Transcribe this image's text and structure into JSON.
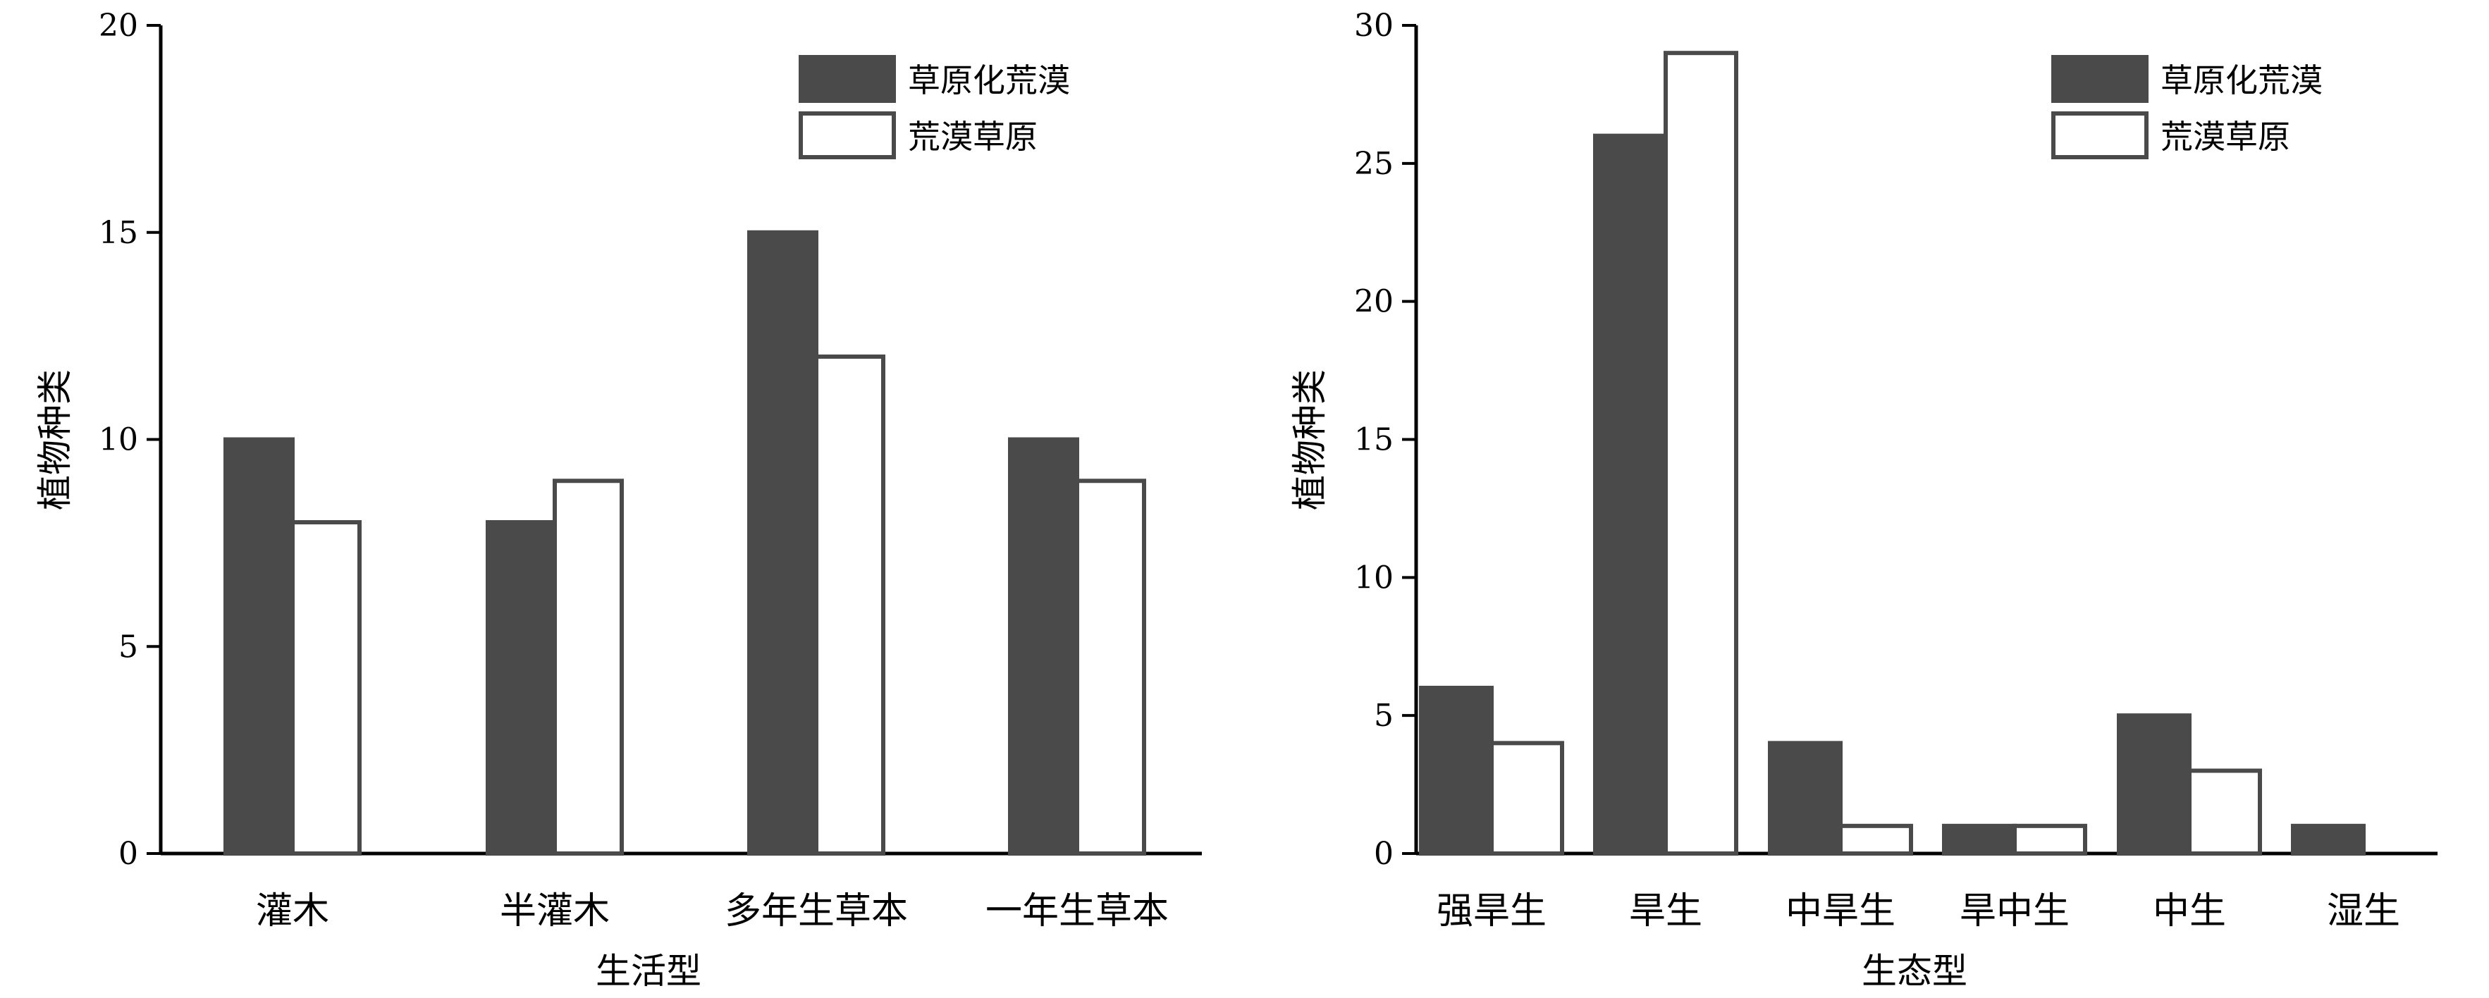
{
  "colors": {
    "series_filled": "#4a4a4a",
    "series_open": "#ffffff",
    "stroke": "#4a4a4a",
    "axis": "#000000"
  },
  "chart_data": [
    {
      "type": "bar",
      "title": "",
      "xlabel": "生活型",
      "ylabel": "植物种类",
      "ylim": [
        0,
        20
      ],
      "yticks": [
        0,
        5,
        10,
        15,
        20
      ],
      "grid": false,
      "legend_position": "top-right",
      "categories": [
        "灌木",
        "半灌木",
        "多年生草本",
        "一年生草本"
      ],
      "series": [
        {
          "name": "草原化荒漠",
          "values": [
            10,
            8,
            15,
            10
          ]
        },
        {
          "name": "荒漠草原",
          "values": [
            8,
            9,
            12,
            9
          ]
        }
      ]
    },
    {
      "type": "bar",
      "title": "",
      "xlabel": "生态型",
      "ylabel": "植物种类",
      "ylim": [
        0,
        30
      ],
      "yticks": [
        0,
        5,
        10,
        15,
        20,
        25,
        30
      ],
      "grid": false,
      "legend_position": "top-right",
      "categories": [
        "强旱生",
        "旱生",
        "中旱生",
        "旱中生",
        "中生",
        "湿生"
      ],
      "series": [
        {
          "name": "草原化荒漠",
          "values": [
            6,
            26,
            4,
            1,
            5,
            1
          ]
        },
        {
          "name": "荒漠草原",
          "values": [
            4,
            29,
            1,
            1,
            3,
            0
          ]
        }
      ]
    }
  ]
}
